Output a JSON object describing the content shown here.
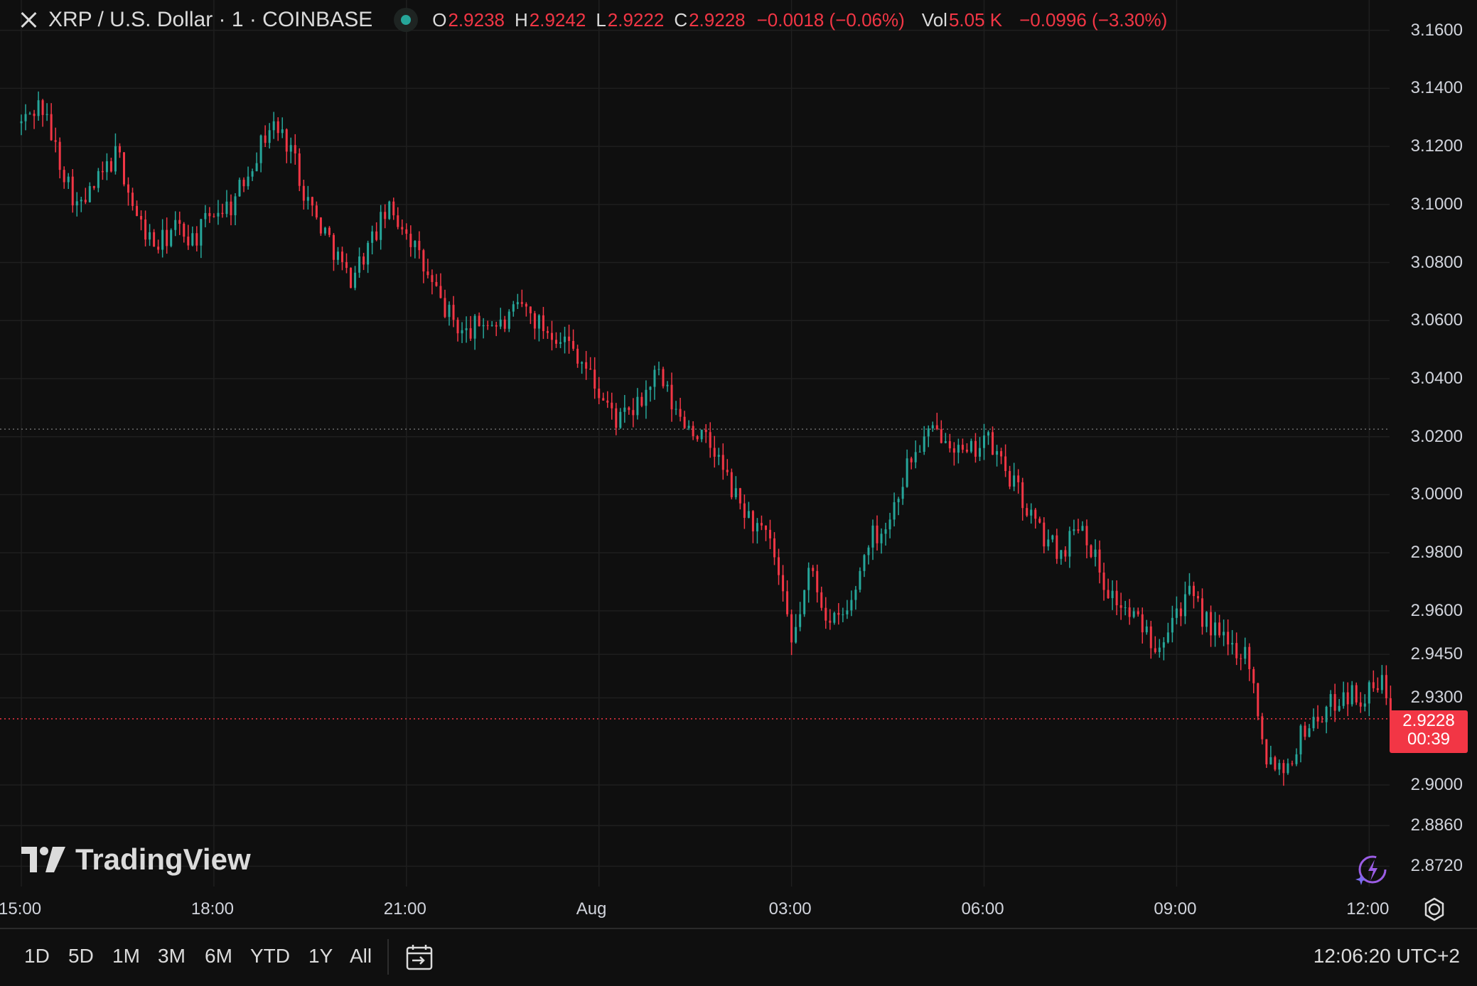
{
  "header": {
    "title": "XRP / U.S. Dollar · 1 · COINBASE",
    "open_label": "O",
    "open": "2.9238",
    "high_label": "H",
    "high": "2.9242",
    "low_label": "L",
    "low": "2.9222",
    "close_label": "C",
    "close": "2.9228",
    "change": "−0.0018 (−0.06%)",
    "vol_label": "Vol",
    "vol": "5.05 K",
    "day_change": "−0.0996 (−3.30%)"
  },
  "price_axis": {
    "ticks": [
      "3.1600",
      "3.1400",
      "3.1200",
      "3.1000",
      "3.0800",
      "3.0600",
      "3.0400",
      "3.0200",
      "3.0000",
      "2.9800",
      "2.9600",
      "2.9450",
      "2.9300",
      "2.9000",
      "2.8860",
      "2.8720"
    ],
    "current_price": "2.9228",
    "countdown": "00:39"
  },
  "time_axis": {
    "labels": [
      "15:00",
      "18:00",
      "21:00",
      "Aug",
      "03:00",
      "06:00",
      "09:00",
      "12:00"
    ]
  },
  "toolbar": {
    "ranges": [
      "1D",
      "5D",
      "1M",
      "3M",
      "6M",
      "YTD",
      "1Y",
      "All"
    ],
    "clock": "12:06:20 UTC+2"
  },
  "branding": {
    "logo_text": "TradingView"
  },
  "colors": {
    "up": "#26a69a",
    "down": "#f23645",
    "background": "#0f0f0f",
    "grid": "#1f1f1f"
  },
  "chart_data": {
    "type": "line",
    "style": "candlestick",
    "symbol": "XRP / U.S. Dollar",
    "interval": "1",
    "exchange": "COINBASE",
    "x_unit": "hours since 15:00",
    "ylim": [
      2.865,
      3.168
    ],
    "reference_lines": [
      3.0226,
      2.9228
    ],
    "x": [
      0,
      0.3,
      0.6,
      0.9,
      1.2,
      1.5,
      1.8,
      2.1,
      2.4,
      2.7,
      3.0,
      3.3,
      3.6,
      3.9,
      4.2,
      4.4,
      4.6,
      4.8,
      5.1,
      5.4,
      5.7,
      6.0,
      6.3,
      6.6,
      6.9,
      7.2,
      7.5,
      7.8,
      8.1,
      8.4,
      8.7,
      9.0,
      9.3,
      9.6,
      9.9,
      10.2,
      10.5,
      10.8,
      11.1,
      11.4,
      11.7,
      12.0,
      12.3,
      12.6,
      12.9,
      13.2,
      13.5,
      13.8,
      14.1,
      14.4,
      14.7,
      15.0,
      15.3,
      15.6,
      15.9,
      16.2,
      16.5,
      16.9,
      17.2,
      17.5,
      17.7,
      17.9,
      18.2,
      18.5,
      18.8,
      19.1,
      19.4,
      19.7,
      20.0,
      20.3,
      20.6,
      20.9,
      21.2,
      21.4
    ],
    "values": [
      3.128,
      3.135,
      3.115,
      3.098,
      3.108,
      3.118,
      3.095,
      3.085,
      3.092,
      3.088,
      3.098,
      3.1,
      3.115,
      3.128,
      3.12,
      3.105,
      3.095,
      3.088,
      3.074,
      3.085,
      3.098,
      3.092,
      3.076,
      3.064,
      3.055,
      3.06,
      3.058,
      3.065,
      3.058,
      3.055,
      3.048,
      3.035,
      3.025,
      3.03,
      3.042,
      3.028,
      3.022,
      3.015,
      3.0,
      2.99,
      2.982,
      2.948,
      2.975,
      2.955,
      2.96,
      2.985,
      2.99,
      3.01,
      3.02,
      3.022,
      3.012,
      3.02,
      3.01,
      2.998,
      2.986,
      2.98,
      2.992,
      2.968,
      2.96,
      2.954,
      2.948,
      2.958,
      2.965,
      2.955,
      2.948,
      2.946,
      2.91,
      2.906,
      2.92,
      2.925,
      2.932,
      2.93,
      2.935,
      2.923
    ]
  }
}
